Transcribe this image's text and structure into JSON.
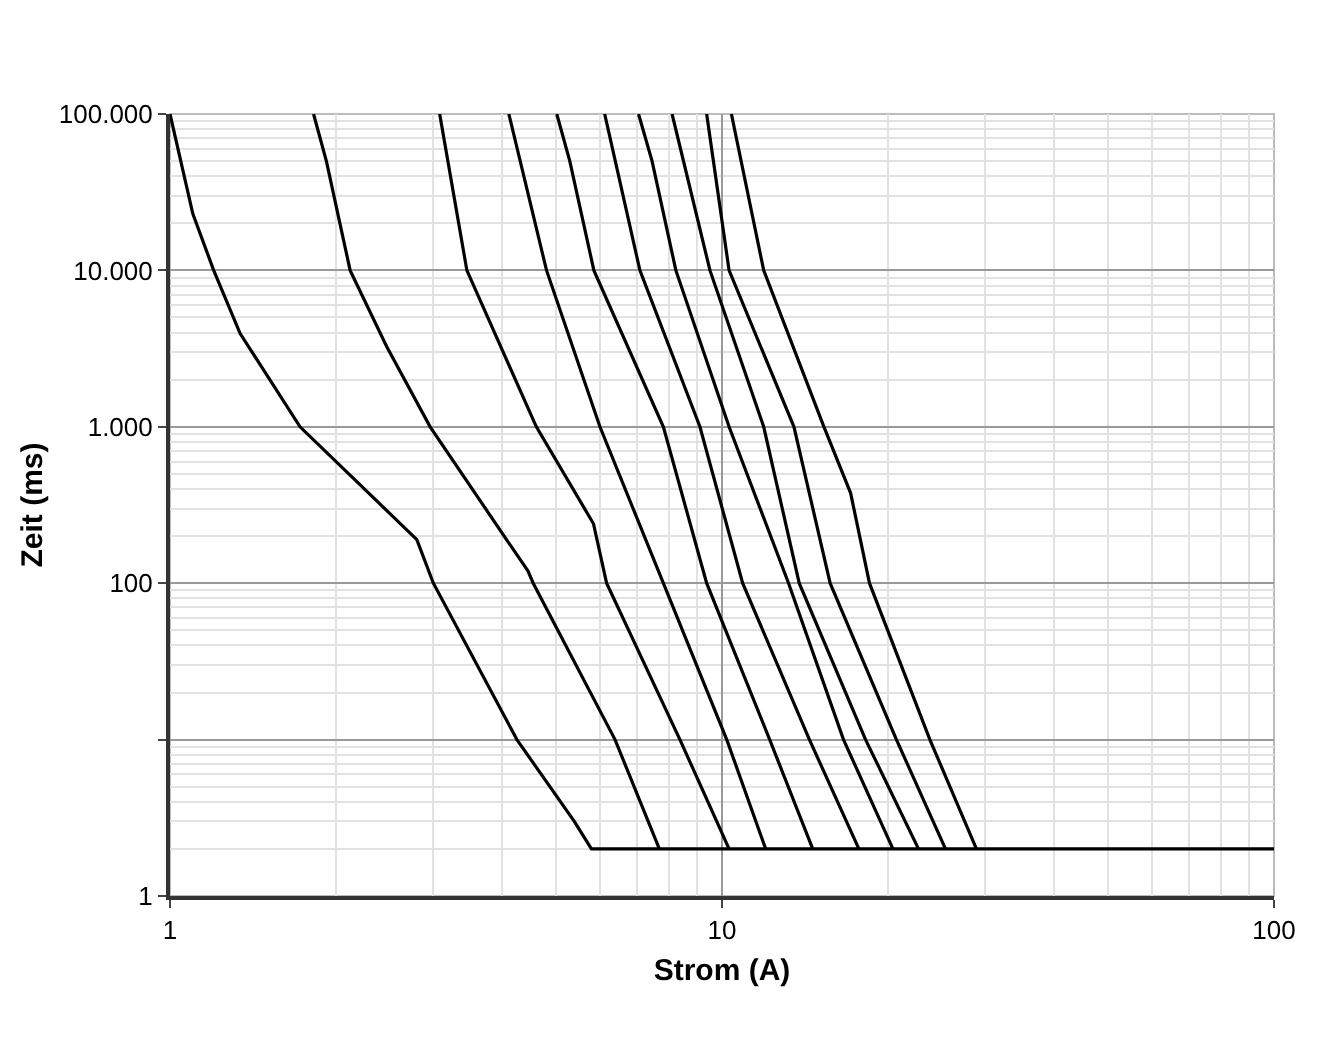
{
  "chart_data": {
    "type": "line",
    "xlabel": "Strom (A)",
    "ylabel": "Zeit (ms)",
    "log": "xy",
    "grid": true,
    "marker": "none",
    "line_style": "solid",
    "xlim": [
      1,
      100
    ],
    "xticks": [
      1,
      10,
      100
    ],
    "ylim": [
      1,
      100000
    ],
    "yticks": [
      1,
      {
        "value": 10,
        "label": null
      },
      100,
      {
        "value": 1000,
        "label": "1.000"
      },
      {
        "value": 10000,
        "label": "10.000"
      },
      {
        "value": 100000,
        "label": "100.000"
      }
    ],
    "series": [
      {
        "color": "#000000",
        "x": [
          1,
          1.1,
          1.2,
          1.34,
          1.72,
          2.8,
          3.0,
          4.25,
          5.4,
          5.8,
          100
        ],
        "values": [
          100000,
          23000,
          10000,
          3950,
          1000,
          190,
          100,
          10,
          3,
          2,
          2
        ]
      },
      {
        "color": "#000000",
        "x": [
          1.82,
          1.92,
          2.12,
          2.47,
          2.96,
          4.07,
          4.45,
          4.55,
          6.4,
          7.7
        ],
        "values": [
          100000,
          50000,
          10000,
          3250,
          1000,
          190,
          120,
          100,
          10,
          2
        ]
      },
      {
        "color": "#000000",
        "x": [
          3.08,
          3.45,
          4.61,
          5.85,
          6.18,
          8.39,
          10.3
        ],
        "values": [
          100000,
          10000,
          1000,
          240,
          100,
          10,
          2
        ]
      },
      {
        "color": "#000000",
        "x": [
          4.11,
          4.81,
          6.01,
          7.83,
          10.2,
          12.0
        ],
        "values": [
          100000,
          10000,
          1000,
          100,
          10,
          2
        ]
      },
      {
        "color": "#000000",
        "x": [
          5.02,
          5.3,
          5.86,
          7.83,
          9.38,
          12.2,
          14.6
        ],
        "values": [
          100000,
          50000,
          10000,
          1000,
          100,
          10,
          2
        ]
      },
      {
        "color": "#000000",
        "x": [
          6.13,
          7.1,
          9.12,
          10.9,
          14.4,
          17.7
        ],
        "values": [
          100000,
          10000,
          1000,
          100,
          10,
          2
        ]
      },
      {
        "color": "#000000",
        "x": [
          7.06,
          7.47,
          8.25,
          10.3,
          13.2,
          16.6,
          20.4
        ],
        "values": [
          100000,
          50000,
          10000,
          1000,
          100,
          10,
          2
        ]
      },
      {
        "color": "#000000",
        "x": [
          8.12,
          9.51,
          11.9,
          13.8,
          18.2,
          22.7
        ],
        "values": [
          100000,
          10000,
          1000,
          100,
          10,
          2
        ]
      },
      {
        "color": "#000000",
        "x": [
          9.38,
          10.3,
          13.5,
          15.7,
          20.7,
          25.4
        ],
        "values": [
          100000,
          10000,
          1000,
          100,
          10,
          2
        ]
      },
      {
        "color": "#000000",
        "x": [
          10.4,
          11.9,
          15.3,
          17.1,
          18.5,
          23.8,
          28.9
        ],
        "values": [
          100000,
          10000,
          1000,
          377,
          100,
          10,
          2
        ]
      }
    ]
  }
}
